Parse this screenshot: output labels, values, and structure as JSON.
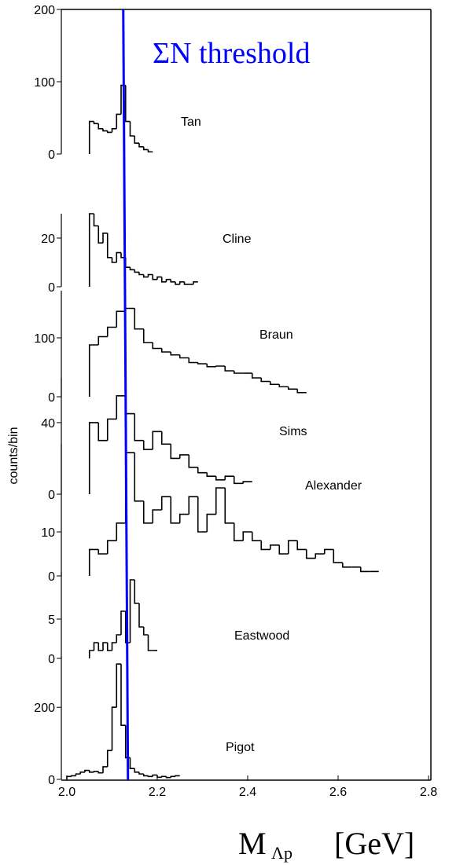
{
  "chart_data": {
    "type": "histogram",
    "annotation": "ΣN  threshold",
    "threshold": {
      "value": 2.13,
      "color": "#0000ff"
    },
    "y_label": "counts/bin",
    "x_label": {
      "symbol": "M",
      "subscript": "Λp",
      "unit": "[GeV]"
    },
    "xlim": [
      2.0,
      2.8
    ],
    "xticks": [
      {
        "value": 2.0,
        "label": "2.0"
      },
      2.2,
      2.4,
      2.6,
      2.8
    ],
    "color": "#000000",
    "panels": [
      {
        "name": "Tan",
        "ylim": [
          0,
          200
        ],
        "yticks": [
          0,
          100,
          200
        ],
        "bins": [
          2.05,
          2.06,
          2.07,
          2.08,
          2.09,
          2.1,
          2.11,
          2.12,
          2.13,
          2.14,
          2.15,
          2.16,
          2.17,
          2.18,
          2.19
        ],
        "counts": [
          45,
          42,
          35,
          32,
          30,
          35,
          55,
          95,
          45,
          25,
          15,
          10,
          6,
          3
        ]
      },
      {
        "name": "Cline",
        "ylim": [
          0,
          30
        ],
        "yticks": [
          0,
          20
        ],
        "bins": [
          2.05,
          2.06,
          2.07,
          2.08,
          2.09,
          2.1,
          2.11,
          2.12,
          2.13,
          2.14,
          2.15,
          2.16,
          2.17,
          2.18,
          2.19,
          2.2,
          2.21,
          2.22,
          2.23,
          2.24,
          2.25,
          2.26,
          2.27,
          2.28,
          2.29
        ],
        "counts": [
          30,
          25,
          18,
          22,
          12,
          10,
          14,
          12,
          8,
          7,
          6,
          5,
          4,
          5,
          3,
          4,
          2,
          3,
          2,
          1,
          2,
          1,
          1,
          2
        ]
      },
      {
        "name": "Braun",
        "ylim": [
          0,
          180
        ],
        "yticks": [
          0,
          100
        ],
        "bins": [
          2.05,
          2.07,
          2.09,
          2.11,
          2.13,
          2.15,
          2.17,
          2.19,
          2.21,
          2.23,
          2.25,
          2.27,
          2.29,
          2.31,
          2.33,
          2.35,
          2.37,
          2.39,
          2.41,
          2.43,
          2.45,
          2.47,
          2.49,
          2.51,
          2.53
        ],
        "counts": [
          88,
          102,
          118,
          145,
          150,
          115,
          92,
          82,
          76,
          71,
          66,
          58,
          56,
          51,
          52,
          44,
          40,
          40,
          32,
          26,
          21,
          17,
          13,
          7
        ]
      },
      {
        "name": "Sims",
        "ylim": [
          0,
          65
        ],
        "yticks": [
          0,
          40
        ],
        "bins": [
          2.05,
          2.07,
          2.09,
          2.11,
          2.13,
          2.15,
          2.17,
          2.19,
          2.21,
          2.23,
          2.25,
          2.27,
          2.29,
          2.31,
          2.33,
          2.35,
          2.37,
          2.39,
          2.41
        ],
        "counts": [
          40,
          30,
          42,
          55,
          45,
          30,
          25,
          35,
          28,
          20,
          22,
          15,
          12,
          10,
          8,
          10,
          6,
          7
        ]
      },
      {
        "name": "Alexander",
        "ylim": [
          0,
          30
        ],
        "yticks": [
          0,
          10
        ],
        "bins": [
          2.05,
          2.07,
          2.09,
          2.11,
          2.13,
          2.15,
          2.17,
          2.19,
          2.21,
          2.23,
          2.25,
          2.27,
          2.29,
          2.31,
          2.33,
          2.35,
          2.37,
          2.39,
          2.41,
          2.43,
          2.45,
          2.47,
          2.49,
          2.51,
          2.53,
          2.55,
          2.57,
          2.59,
          2.61,
          2.63,
          2.65,
          2.67,
          2.69
        ],
        "counts": [
          6,
          5,
          8,
          12,
          28,
          17,
          12,
          15,
          18,
          12,
          14,
          18,
          10,
          14,
          20,
          12,
          8,
          10,
          8,
          6,
          7,
          5,
          8,
          6,
          4,
          5,
          6,
          3,
          2,
          2,
          1,
          1
        ]
      },
      {
        "name": "Eastwood",
        "ylim": [
          0,
          11
        ],
        "yticks": [
          0,
          5
        ],
        "bins": [
          2.05,
          2.06,
          2.07,
          2.08,
          2.09,
          2.1,
          2.11,
          2.12,
          2.13,
          2.14,
          2.15,
          2.16,
          2.17,
          2.18,
          2.19,
          2.2
        ],
        "counts": [
          1,
          2,
          1,
          2,
          1,
          2,
          3,
          6,
          2,
          10,
          7,
          4,
          3,
          1,
          1
        ]
      },
      {
        "name": "Pigot",
        "ylim": [
          0,
          340
        ],
        "yticks": [
          0,
          200
        ],
        "bins": [
          2.0,
          2.01,
          2.02,
          2.03,
          2.04,
          2.05,
          2.06,
          2.07,
          2.08,
          2.09,
          2.1,
          2.11,
          2.12,
          2.13,
          2.14,
          2.15,
          2.16,
          2.17,
          2.18,
          2.19,
          2.2,
          2.21,
          2.22,
          2.23,
          2.24,
          2.25
        ],
        "counts": [
          8,
          10,
          15,
          20,
          25,
          20,
          22,
          18,
          35,
          80,
          200,
          320,
          150,
          60,
          30,
          20,
          15,
          10,
          8,
          12,
          6,
          8,
          5,
          8,
          10
        ]
      }
    ]
  }
}
